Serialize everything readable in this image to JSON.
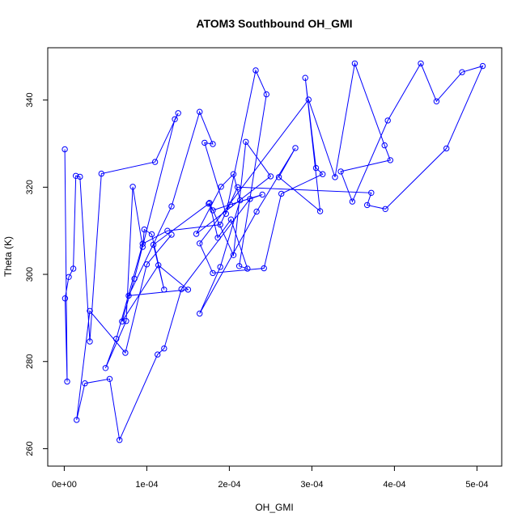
{
  "chart_data": {
    "type": "line",
    "title": "ATOM3 Southbound OH_GMI",
    "xlabel": "OH_GMI",
    "ylabel": "Theta (K)",
    "xlim": [
      -2e-05,
      0.00053
    ],
    "ylim": [
      256,
      352
    ],
    "xticks": [
      0,
      0.0001,
      0.0002,
      0.0003,
      0.0004,
      0.0005
    ],
    "xtick_labels": [
      "0e+00",
      "1e-04",
      "2e-04",
      "3e-04",
      "4e-04",
      "5e-04"
    ],
    "yticks": [
      260,
      280,
      300,
      320,
      340
    ],
    "ytick_labels": [
      "260",
      "280",
      "300",
      "320",
      "340"
    ],
    "grid": false,
    "marker": "open-circle",
    "series": [
      {
        "color": "#0000ff",
        "x": [
          7e-07,
          3.5e-06,
          1e-06,
          5.5e-06,
          1.1e-05,
          1.4e-05,
          1.9e-05,
          3.1e-05,
          4.5e-05,
          0.00011,
          0.000138,
          0.000134,
          8.5e-05,
          7e-05,
          0.000114,
          0.00015,
          7.8e-05,
          0.00013,
          0.000164,
          0.00018,
          0.00017,
          0.000196,
          0.000232,
          0.000245,
          0.000212,
          0.000222,
          0.000202,
          0.000186,
          0.000176,
          0.000205,
          0.00022,
          0.00025,
          0.00016,
          0.00019,
          0.000205,
          0.000213,
          0.000189,
          0.000164,
          0.000233,
          0.00028,
          0.00026,
          0.00031,
          0.000292,
          0.000305,
          0.000313,
          0.000263,
          0.000242,
          0.00018,
          0.000164,
          0.000296,
          0.000328,
          0.000352,
          0.000388,
          0.000395,
          0.000335,
          0.000349,
          0.000392,
          0.000432,
          0.000451,
          0.000482,
          0.000507,
          0.000463,
          0.000389,
          0.000367,
          0.000372,
          0.00021,
          0.000189,
          0.000125,
          9.5e-05,
          6.3e-05,
          5e-05,
          7.5e-05,
          8.3e-05,
          9.5e-05,
          9.7e-05,
          0.000106,
          0.000121,
          0.000108,
          0.000175,
          0.00018,
          0.000201,
          0.00024,
          0.000225,
          0.000142,
          0.000121,
          0.000113,
          6.7e-05,
          5.5e-05,
          2.5e-05,
          1.5e-05,
          3.1e-05,
          7.4e-05,
          0.0001,
          0.00013
        ],
        "y": [
          328.7,
          275.4,
          294.5,
          299.4,
          301.3,
          322.6,
          322.4,
          284.6,
          323.1,
          325.8,
          337.0,
          335.6,
          299.0,
          289.2,
          302.1,
          296.5,
          295.1,
          315.6,
          337.3,
          329.9,
          330.2,
          313.9,
          346.8,
          341.3,
          301.9,
          301.3,
          312.6,
          308.4,
          316.4,
          304.4,
          330.4,
          322.5,
          309.3,
          320.1,
          323.0,
          317.0,
          301.7,
          291.0,
          314.4,
          329.0,
          322.3,
          314.5,
          345.1,
          324.4,
          323.0,
          318.5,
          301.4,
          300.3,
          307.1,
          340.1,
          322.3,
          348.4,
          329.6,
          326.2,
          323.6,
          316.7,
          335.3,
          348.4,
          339.7,
          346.4,
          347.8,
          328.9,
          315.0,
          315.9,
          318.7,
          320.0,
          311.4,
          310.0,
          307.0,
          285.2,
          278.5,
          289.3,
          320.1,
          306.3,
          310.3,
          309.2,
          296.5,
          306.8,
          316.2,
          314.7,
          316.0,
          318.3,
          317.3,
          296.6,
          283.0,
          281.6,
          262.0,
          276.0,
          275.0,
          266.6,
          291.6,
          282.0,
          302.3,
          309.1
        ]
      }
    ]
  }
}
